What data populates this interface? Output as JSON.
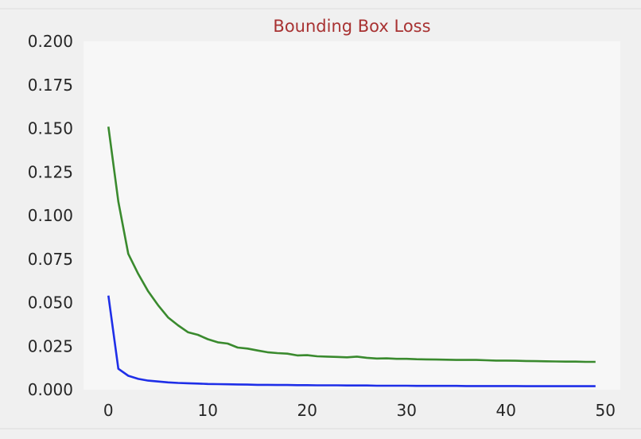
{
  "chart_data": {
    "type": "line",
    "title": "Bounding Box Loss",
    "xlabel": "",
    "ylabel": "",
    "xlim": [
      -2.5,
      51.5
    ],
    "ylim": [
      0,
      0.2
    ],
    "grid": false,
    "x_ticks": [
      0,
      10,
      20,
      30,
      40,
      50
    ],
    "x_tick_labels": [
      "0",
      "10",
      "20",
      "30",
      "40",
      "50"
    ],
    "y_ticks": [
      0,
      0.025,
      0.05,
      0.075,
      0.1,
      0.125,
      0.15,
      0.175,
      0.2
    ],
    "y_tick_labels": [
      "0.000",
      "0.025",
      "0.050",
      "0.075",
      "0.100",
      "0.125",
      "0.150",
      "0.175",
      "0.200"
    ],
    "colors": {
      "title": "#a83232",
      "plot_background": "#f7f7f7",
      "figure_background": "#f0f0f0"
    },
    "x": [
      0,
      1,
      2,
      3,
      4,
      5,
      6,
      7,
      8,
      9,
      10,
      11,
      12,
      13,
      14,
      15,
      16,
      17,
      18,
      19,
      20,
      21,
      22,
      23,
      24,
      25,
      26,
      27,
      28,
      29,
      30,
      31,
      32,
      33,
      34,
      35,
      36,
      37,
      38,
      39,
      40,
      41,
      42,
      43,
      44,
      45,
      46,
      47,
      48,
      49
    ],
    "series": [
      {
        "color": "#3a8a2e",
        "values": [
          0.151,
          0.108,
          0.078,
          0.0665,
          0.0565,
          0.0485,
          0.0415,
          0.037,
          0.033,
          0.0315,
          0.029,
          0.0272,
          0.0265,
          0.0242,
          0.0236,
          0.0225,
          0.0215,
          0.021,
          0.0207,
          0.0197,
          0.0198,
          0.0192,
          0.019,
          0.0188,
          0.0186,
          0.019,
          0.0183,
          0.0179,
          0.018,
          0.0177,
          0.0177,
          0.0175,
          0.0174,
          0.0173,
          0.0172,
          0.0171,
          0.0171,
          0.0171,
          0.0169,
          0.0167,
          0.0167,
          0.0166,
          0.0165,
          0.0164,
          0.0163,
          0.0162,
          0.0161,
          0.0161,
          0.016,
          0.016
        ]
      },
      {
        "color": "#1f2fe8",
        "values": [
          0.054,
          0.012,
          0.008,
          0.0062,
          0.0052,
          0.0047,
          0.0042,
          0.0039,
          0.0037,
          0.0035,
          0.0033,
          0.0032,
          0.0031,
          0.003,
          0.0029,
          0.0028,
          0.0028,
          0.0027,
          0.0027,
          0.0026,
          0.0026,
          0.0025,
          0.0025,
          0.0025,
          0.0024,
          0.0024,
          0.0024,
          0.0023,
          0.0023,
          0.0023,
          0.0023,
          0.0022,
          0.0022,
          0.0022,
          0.0022,
          0.0022,
          0.0021,
          0.0021,
          0.0021,
          0.0021,
          0.0021,
          0.0021,
          0.002,
          0.002,
          0.002,
          0.002,
          0.002,
          0.002,
          0.002,
          0.002
        ]
      }
    ]
  }
}
